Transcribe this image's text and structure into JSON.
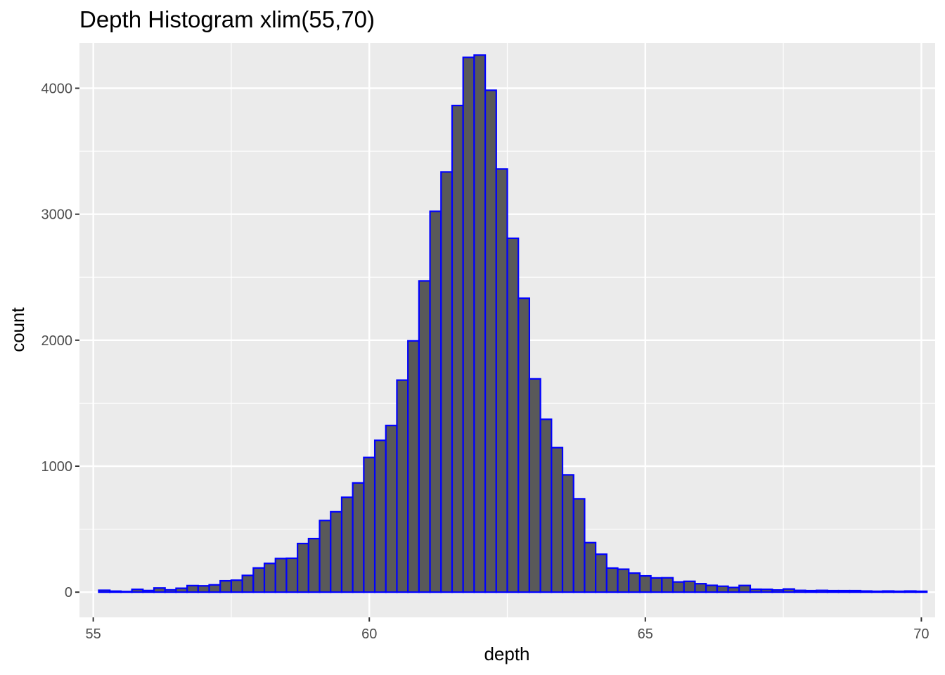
{
  "chart_data": {
    "type": "bar",
    "title": "Depth Histogram xlim(55,70)",
    "xlabel": "depth",
    "ylabel": "count",
    "xlim": [
      54.75,
      70.25
    ],
    "ylim": [
      -200,
      4360
    ],
    "xticks": [
      55,
      60,
      65,
      70
    ],
    "yticks": [
      0,
      1000,
      2000,
      3000,
      4000
    ],
    "yminor": [
      500,
      1500,
      2500,
      3500
    ],
    "xminor": [
      57.5,
      62.5,
      67.5
    ],
    "grid": true,
    "bin_width": 0.2,
    "bins_start": 55.1,
    "values": [
      15,
      8,
      5,
      22,
      13,
      33,
      18,
      31,
      52,
      50,
      58,
      90,
      95,
      133,
      192,
      228,
      267,
      269,
      386,
      425,
      569,
      638,
      753,
      867,
      1069,
      1205,
      1323,
      1683,
      1995,
      2471,
      3023,
      3336,
      3863,
      4245,
      4263,
      3984,
      3359,
      2809,
      2333,
      1693,
      1372,
      1147,
      931,
      741,
      393,
      301,
      191,
      182,
      151,
      129,
      113,
      114,
      81,
      86,
      67,
      54,
      47,
      37,
      53,
      23,
      22,
      17,
      25,
      14,
      12,
      14,
      12,
      12,
      12,
      9,
      7,
      9,
      7,
      9,
      7
    ],
    "colors": {
      "bar_fill": "#595959",
      "bar_outline": "#0000ff",
      "panel": "#ebebeb",
      "grid": "#ffffff",
      "tick": "#333333"
    }
  }
}
